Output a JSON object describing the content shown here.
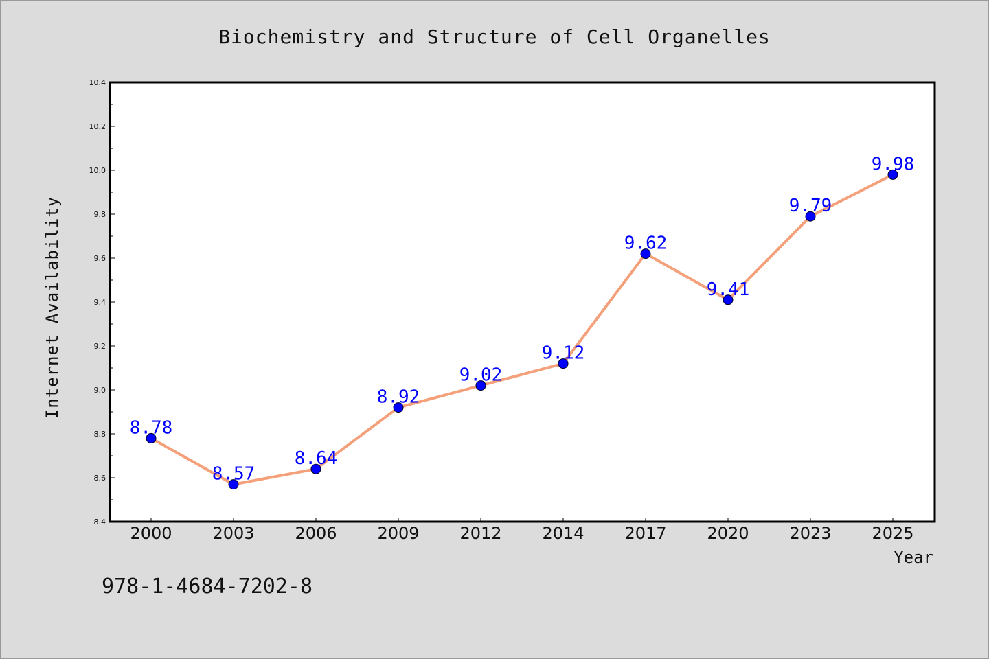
{
  "chart_data": {
    "type": "line",
    "title": "Biochemistry and Structure of Cell Organelles",
    "xlabel": "Year",
    "ylabel": "Internet Availability",
    "categories": [
      "2000",
      "2003",
      "2006",
      "2009",
      "2012",
      "2014",
      "2017",
      "2020",
      "2023",
      "2025"
    ],
    "series": [
      {
        "values": [
          8.78,
          8.57,
          8.64,
          8.92,
          9.02,
          9.12,
          9.62,
          9.41,
          9.79,
          9.98
        ],
        "labels": [
          "8.78",
          "8.57",
          "8.64",
          "8.92",
          "9.02",
          "9.12",
          "9.62",
          "9.41",
          "9.79",
          "9.98"
        ]
      }
    ],
    "ylim": [
      8.4,
      10.4
    ],
    "yticks": [
      "8.4",
      "8.6",
      "8.8",
      "9.0",
      "9.2",
      "9.4",
      "9.6",
      "9.8",
      "10.0",
      "10.2",
      "10.4"
    ],
    "grid": false,
    "line_color": "#f4a07a",
    "marker_color": "#0000ff",
    "label_color": "#0000ff",
    "plot_background": "#ffffff",
    "page_background": "#dcdcdc"
  },
  "annotation": {
    "isbn": "978-1-4684-7202-8"
  }
}
